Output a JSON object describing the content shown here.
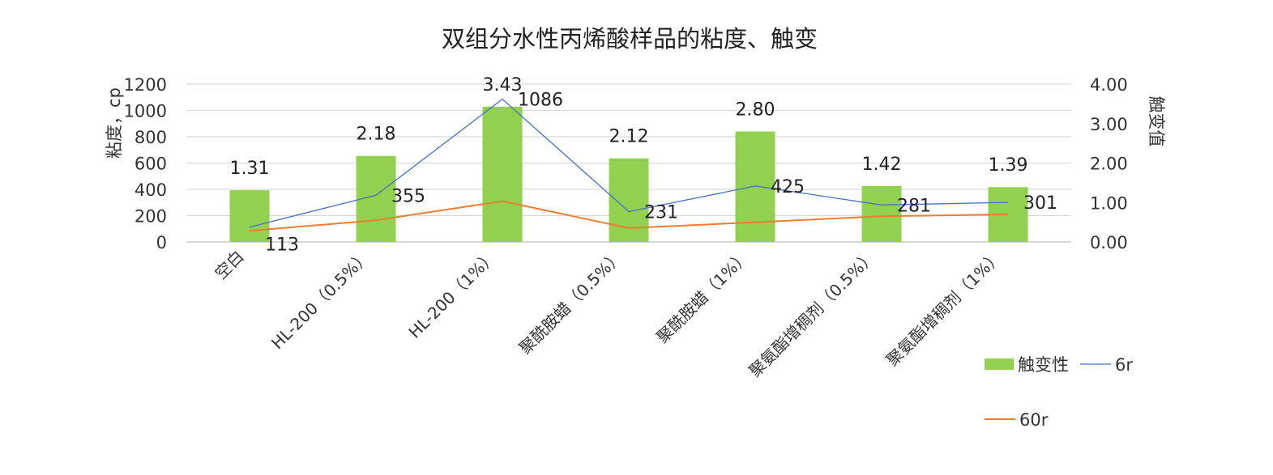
{
  "chart_data": {
    "type": "bar",
    "title": "双组分水性丙烯酸样品的粘度、触变",
    "ylabel": "粘度，cp",
    "y2label": "触变值",
    "categories": [
      "空白",
      "HL-200（0.5%）",
      "HL-200（1%）",
      "聚酰胺蜡（0.5%）",
      "聚酰胺蜡（1%）",
      "聚氨酯增稠剂（0.5%）",
      "聚氨酯增稠剂（1%）"
    ],
    "ylim": [
      0,
      1200
    ],
    "y_ticks": [
      "0",
      "200",
      "400",
      "600",
      "800",
      "1000",
      "1200"
    ],
    "y2lim": [
      0,
      4
    ],
    "y2_ticks": [
      "0.00",
      "1.00",
      "2.00",
      "3.00",
      "4.00"
    ],
    "grid": true,
    "legend_position": "bottom-right",
    "series": [
      {
        "name": "触变性",
        "type": "bar",
        "axis": "right",
        "color": "#92d050",
        "values": [
          1.31,
          2.18,
          3.43,
          2.12,
          2.8,
          1.42,
          1.39
        ],
        "labels": [
          "1.31",
          "2.18",
          "3.43",
          "2.12",
          "2.80",
          "1.42",
          "1.39"
        ]
      },
      {
        "name": "6r",
        "type": "line",
        "axis": "left",
        "color": "#4472c4",
        "values": [
          113,
          355,
          1086,
          231,
          425,
          281,
          301
        ],
        "labels": [
          "113",
          "355",
          "1086",
          "231",
          "425",
          "281",
          "301"
        ]
      },
      {
        "name": "60r",
        "type": "line",
        "axis": "left",
        "color": "#ed7d31",
        "values": [
          85,
          165,
          310,
          105,
          150,
          195,
          210
        ]
      }
    ]
  }
}
